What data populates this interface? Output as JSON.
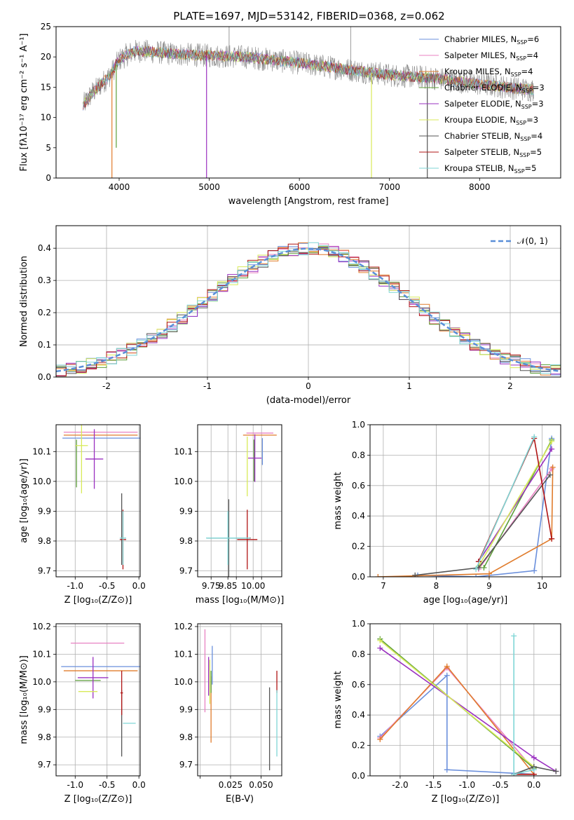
{
  "figure": {
    "title": "PLATE=1697, MJD=53142, FIBERID=0368, z=0.062"
  },
  "models": [
    {
      "name": "Chabrier MILES",
      "n_ssp": "6",
      "color": "#6a8fdc"
    },
    {
      "name": "Salpeter MILES",
      "n_ssp": "4",
      "color": "#e882c2"
    },
    {
      "name": "Kroupa MILES",
      "n_ssp": "4",
      "color": "#e07c2c"
    },
    {
      "name": "Chabrier ELODIE",
      "n_ssp": "3",
      "color": "#5d9e3a"
    },
    {
      "name": "Salpeter ELODIE",
      "n_ssp": "3",
      "color": "#9a30c0"
    },
    {
      "name": "Kroupa ELODIE",
      "n_ssp": "3",
      "color": "#d8ea58"
    },
    {
      "name": "Chabrier STELIB",
      "n_ssp": "4",
      "color": "#555555"
    },
    {
      "name": "Salpeter STELIB",
      "n_ssp": "5",
      "color": "#b01414"
    },
    {
      "name": "Kroupa STELIB",
      "n_ssp": "5",
      "color": "#7fd6d6"
    }
  ],
  "chart_data": [
    {
      "id": "spectrum",
      "type": "line",
      "xlabel": "wavelength [Angstrom, rest frame]",
      "ylabel": "Flux [fλ10⁻¹⁷ erg cm⁻² s⁻¹ A⁻¹]",
      "xlim": [
        3300,
        8900
      ],
      "ylim": [
        0,
        25
      ],
      "xticks": [
        4000,
        5000,
        6000,
        7000,
        8000
      ],
      "yticks": [
        0,
        5,
        10,
        15,
        20,
        25
      ],
      "legend_loc": "upper-right",
      "data_color": "#888888",
      "x_range_data": [
        3600,
        8600
      ],
      "continuum": {
        "x": [
          3600,
          3700,
          3800,
          3900,
          4000,
          4100,
          4200,
          4400,
          4600,
          5000,
          5400,
          6000,
          6500,
          7000,
          7500,
          8000,
          8300,
          8600
        ],
        "y": [
          12,
          14,
          15.5,
          17,
          19.5,
          20.5,
          21,
          20.8,
          20.5,
          20.2,
          20,
          19,
          18,
          17,
          16.5,
          15.5,
          15,
          14.5
        ]
      },
      "features": [
        {
          "x": 3920,
          "y_min": 0
        },
        {
          "x": 3968,
          "y_min": 5
        },
        {
          "x": 4970,
          "y_min": 0
        },
        {
          "x": 6800,
          "y_min": 0
        },
        {
          "x": 7420,
          "y_min": 0
        },
        {
          "x": 5220,
          "y_max": 25
        },
        {
          "x": 6570,
          "y_max": 25
        }
      ]
    },
    {
      "id": "residuals",
      "type": "step",
      "xlabel": "(data-model)/error",
      "ylabel": "Normed distribution",
      "xlim": [
        -2.5,
        2.5
      ],
      "ylim": [
        0,
        0.47
      ],
      "xticks": [
        -2,
        -1,
        0,
        1,
        2
      ],
      "yticks": [
        0.0,
        0.1,
        0.2,
        0.3,
        0.4
      ],
      "grid": true,
      "legend_loc": "upper-right",
      "reference_curve": {
        "label": "𝒩(0, 1)",
        "color": "#5a8fd8",
        "mean": 0,
        "sigma": 1
      },
      "bins": {
        "start": -2.5,
        "width": 0.1,
        "count": 50
      },
      "noise_amplitude": 0.02
    },
    {
      "id": "age-vs-Z",
      "type": "errorbar",
      "xlabel": "Z [log₁₀(Z/Z⊙)]",
      "ylabel": "age  [log₁₀(age/yr)]",
      "xlim": [
        -1.3,
        0.02
      ],
      "ylim": [
        9.68,
        10.19
      ],
      "xticks": [
        -1.0,
        -0.5,
        0.0
      ],
      "yticks": [
        9.7,
        9.8,
        9.9,
        10.0,
        10.1
      ],
      "grid": true,
      "points": [
        {
          "x": -0.58,
          "xerr": 0.62,
          "y": 10.145,
          "yerr": 0.0
        },
        {
          "x": -0.6,
          "xerr": 0.58,
          "y": 10.165,
          "yerr": 0.0
        },
        {
          "x": -0.6,
          "xerr": 0.58,
          "y": 10.155,
          "yerr": 0.0
        },
        {
          "x": -0.98,
          "xerr": 0.0,
          "y": 10.06,
          "yerr": 0.08
        },
        {
          "x": -0.7,
          "xerr": 0.14,
          "y": 10.075,
          "yerr": 0.1
        },
        {
          "x": -0.9,
          "xerr": 0.1,
          "y": 10.12,
          "yerr": 0.16
        },
        {
          "x": -0.27,
          "xerr": 0.0,
          "y": 9.84,
          "yerr": 0.12
        },
        {
          "x": -0.25,
          "xerr": 0.05,
          "y": 9.805,
          "yerr": 0.1
        },
        {
          "x": -0.25,
          "xerr": 0.05,
          "y": 9.81,
          "yerr": 0.09
        }
      ]
    },
    {
      "id": "age-vs-mass",
      "type": "errorbar",
      "xlabel": "mass [log₁₀(M/M⊙)]",
      "ylabel": "",
      "xlim": [
        9.67,
        10.17
      ],
      "ylim": [
        9.68,
        10.19
      ],
      "xticks": [
        9.75,
        9.85,
        9.9,
        10.0,
        10.05
      ],
      "xtick_labels": [
        "9.75",
        "9.85",
        "",
        "10.00",
        ""
      ],
      "yticks": [
        9.7,
        9.8,
        9.9,
        10.0,
        10.1
      ],
      "grid": true,
      "points": [
        {
          "x": 10.055,
          "xerr": 0.0,
          "y": 10.1,
          "yerr": 0.045
        },
        {
          "x": 10.04,
          "xerr": 0.08,
          "y": 10.162,
          "yerr": 0.0
        },
        {
          "x": 10.04,
          "xerr": 0.1,
          "y": 10.155,
          "yerr": 0.0
        },
        {
          "x": 10.005,
          "xerr": 0.0,
          "y": 10.07,
          "yerr": 0.07
        },
        {
          "x": 10.01,
          "xerr": 0.04,
          "y": 10.078,
          "yerr": 0.08
        },
        {
          "x": 9.965,
          "xerr": 0.0,
          "y": 10.05,
          "yerr": 0.1
        },
        {
          "x": 9.855,
          "xerr": 0.13,
          "y": 9.81,
          "yerr": 0.13
        },
        {
          "x": 9.965,
          "xerr": 0.06,
          "y": 9.805,
          "yerr": 0.1
        },
        {
          "x": 9.85,
          "xerr": 0.13,
          "y": 9.81,
          "yerr": 0.09
        }
      ]
    },
    {
      "id": "mass-weight-vs-age",
      "type": "line",
      "xlabel": "age  [log₁₀(age/yr)]",
      "ylabel": "mass weight",
      "xlim": [
        6.75,
        10.35
      ],
      "ylim": [
        0,
        1
      ],
      "xticks": [
        7,
        8,
        9,
        10
      ],
      "yticks": [
        0.0,
        0.2,
        0.4,
        0.6,
        0.8,
        1.0
      ],
      "grid": true,
      "series": [
        {
          "x": [
            7.65,
            8.75,
            9.85,
            10.18
          ],
          "y": [
            0.01,
            0.0,
            0.04,
            0.91
          ]
        },
        {
          "x": [
            8.8,
            10.18
          ],
          "y": [
            0.05,
            0.71
          ]
        },
        {
          "x": [
            6.9,
            9.0,
            10.18,
            10.2
          ],
          "y": [
            0.0,
            0.02,
            0.25,
            0.72
          ]
        },
        {
          "x": [
            8.9,
            10.18
          ],
          "y": [
            0.06,
            0.9
          ]
        },
        {
          "x": [
            8.8,
            10.18
          ],
          "y": [
            0.1,
            0.84
          ]
        },
        {
          "x": [
            8.8,
            10.18
          ],
          "y": [
            0.07,
            0.89
          ]
        },
        {
          "x": [
            7.6,
            8.8,
            10.15
          ],
          "y": [
            0.01,
            0.06,
            0.67
          ]
        },
        {
          "x": [
            8.8,
            9.85,
            10.18
          ],
          "y": [
            0.1,
            0.91,
            0.25
          ]
        },
        {
          "x": [
            8.75,
            9.85
          ],
          "y": [
            0.05,
            0.92
          ]
        }
      ]
    },
    {
      "id": "mass-vs-Z",
      "type": "errorbar",
      "xlabel": "Z [log₁₀(Z/Z⊙)]",
      "ylabel": "mass [log₁₀(M/M⊙)]",
      "xlim": [
        -1.3,
        0.02
      ],
      "ylim": [
        9.66,
        10.21
      ],
      "xticks": [
        -1.0,
        -0.5,
        0.0
      ],
      "yticks": [
        9.7,
        9.8,
        9.9,
        10.0,
        10.1,
        10.2
      ],
      "grid": true,
      "points": [
        {
          "x": -0.6,
          "xerr": 0.62,
          "y": 10.055,
          "yerr": 0.0
        },
        {
          "x": -0.65,
          "xerr": 0.42,
          "y": 10.14,
          "yerr": 0.0
        },
        {
          "x": -0.6,
          "xerr": 0.58,
          "y": 10.04,
          "yerr": 0.0
        },
        {
          "x": -0.8,
          "xerr": 0.2,
          "y": 10.005,
          "yerr": 0.0
        },
        {
          "x": -0.72,
          "xerr": 0.24,
          "y": 10.015,
          "yerr": 0.075
        },
        {
          "x": -0.8,
          "xerr": 0.15,
          "y": 9.965,
          "yerr": 0.0
        },
        {
          "x": -0.27,
          "xerr": 0.0,
          "y": 9.85,
          "yerr": 0.12
        },
        {
          "x": -0.27,
          "xerr": 0.02,
          "y": 9.96,
          "yerr": 0.08
        },
        {
          "x": -0.15,
          "xerr": 0.1,
          "y": 9.85,
          "yerr": 0.0
        }
      ]
    },
    {
      "id": "mass-vs-ebv",
      "type": "errorbar",
      "xlabel": "E(B-V)",
      "ylabel": "",
      "xlim": [
        -0.002,
        0.067
      ],
      "ylim": [
        9.66,
        10.21
      ],
      "xticks": [
        0.0,
        0.025,
        0.05
      ],
      "xtick_labels": [
        "",
        "0.025",
        "0.050"
      ],
      "yticks": [
        9.7,
        9.8,
        9.9,
        10.0,
        10.1,
        10.2
      ],
      "grid": true,
      "points": [
        {
          "x": 0.01,
          "xerr": 0.0,
          "y": 10.06,
          "yerr": 0.07
        },
        {
          "x": 0.004,
          "xerr": 0.0,
          "y": 10.04,
          "yerr": 0.15
        },
        {
          "x": 0.009,
          "xerr": 0.0,
          "y": 9.9,
          "yerr": 0.12
        },
        {
          "x": 0.009,
          "xerr": 0.0,
          "y": 10.0,
          "yerr": 0.04
        },
        {
          "x": 0.007,
          "xerr": 0.0,
          "y": 10.02,
          "yerr": 0.07
        },
        {
          "x": 0.008,
          "xerr": 0.0,
          "y": 10.0,
          "yerr": 0.08
        },
        {
          "x": 0.057,
          "xerr": 0.0,
          "y": 9.83,
          "yerr": 0.15
        },
        {
          "x": 0.063,
          "xerr": 0.0,
          "y": 10.0,
          "yerr": 0.04
        },
        {
          "x": 0.063,
          "xerr": 0.0,
          "y": 9.85,
          "yerr": 0.12
        }
      ]
    },
    {
      "id": "mass-weight-vs-Z",
      "type": "line",
      "xlabel": "Z [log₁₀(Z/Z⊙)]",
      "ylabel": "mass weight",
      "xlim": [
        -2.45,
        0.4
      ],
      "ylim": [
        0,
        1
      ],
      "xticks": [
        -2.0,
        -1.5,
        -1.0,
        -0.5,
        0.0
      ],
      "yticks": [
        0.0,
        0.2,
        0.4,
        0.6,
        0.8,
        1.0
      ],
      "grid": true,
      "series": [
        {
          "x": [
            -2.3,
            -1.3,
            -1.3,
            0.0
          ],
          "y": [
            0.26,
            0.66,
            0.04,
            0.01
          ]
        },
        {
          "x": [
            -2.3,
            -1.3,
            0.0
          ],
          "y": [
            0.25,
            0.71,
            0.04
          ]
        },
        {
          "x": [
            -2.3,
            -1.3,
            0.0
          ],
          "y": [
            0.24,
            0.72,
            0.01
          ]
        },
        {
          "x": [
            -2.3,
            0.0
          ],
          "y": [
            0.9,
            0.05
          ]
        },
        {
          "x": [
            -2.3,
            0.0,
            0.33
          ],
          "y": [
            0.84,
            0.12,
            0.03
          ]
        },
        {
          "x": [
            -2.3,
            0.0
          ],
          "y": [
            0.89,
            0.06
          ]
        },
        {
          "x": [
            -0.3,
            0.0,
            0.33
          ],
          "y": [
            0.01,
            0.06,
            0.03
          ]
        },
        {
          "x": [
            -0.3,
            0.0
          ],
          "y": [
            0.01,
            0.01
          ]
        },
        {
          "x": [
            -0.3,
            -0.3,
            0.0
          ],
          "y": [
            0.92,
            0.01,
            0.04
          ]
        }
      ]
    }
  ]
}
